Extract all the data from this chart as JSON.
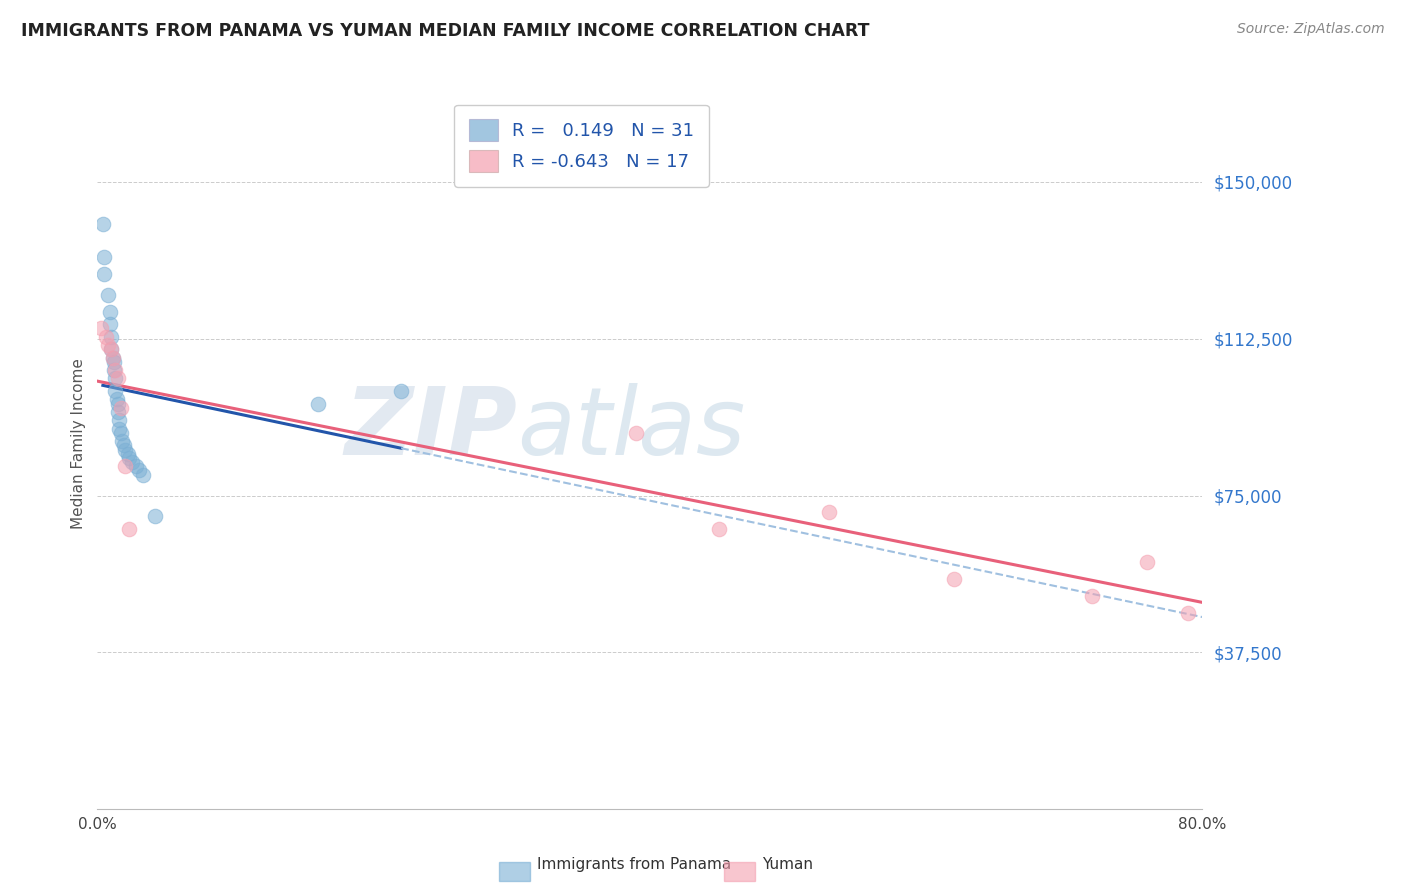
{
  "title": "IMMIGRANTS FROM PANAMA VS YUMAN MEDIAN FAMILY INCOME CORRELATION CHART",
  "source": "Source: ZipAtlas.com",
  "ylabel": "Median Family Income",
  "xlim": [
    0,
    0.8
  ],
  "ylim": [
    0,
    175000
  ],
  "yticks": [
    0,
    37500,
    75000,
    112500,
    150000
  ],
  "ytick_labels": [
    "",
    "$37,500",
    "$75,000",
    "$112,500",
    "$150,000"
  ],
  "xticks": [
    0.0,
    0.1,
    0.2,
    0.3,
    0.4,
    0.5,
    0.6,
    0.7,
    0.8
  ],
  "xtick_labels": [
    "0.0%",
    "",
    "",
    "",
    "",
    "",
    "",
    "",
    "80.0%"
  ],
  "legend_blue_label": "R =   0.149   N = 31",
  "legend_pink_label": "R = -0.643   N = 17",
  "legend_blue_series": "Immigrants from Panama",
  "legend_pink_series": "Yuman",
  "blue_color": "#7bafd4",
  "pink_color": "#f4a0b0",
  "blue_line_color": "#2255aa",
  "blue_dash_color": "#a0c0e0",
  "pink_line_color": "#e8607a",
  "watermark_zip": "ZIP",
  "watermark_atlas": "atlas",
  "blue_x": [
    0.004,
    0.005,
    0.005,
    0.008,
    0.009,
    0.009,
    0.01,
    0.01,
    0.011,
    0.012,
    0.012,
    0.013,
    0.013,
    0.014,
    0.015,
    0.015,
    0.016,
    0.016,
    0.017,
    0.018,
    0.019,
    0.02,
    0.022,
    0.023,
    0.025,
    0.028,
    0.03,
    0.033,
    0.042,
    0.16,
    0.22
  ],
  "blue_y": [
    140000,
    132000,
    128000,
    123000,
    119000,
    116000,
    113000,
    110000,
    108000,
    107000,
    105000,
    103000,
    100000,
    98000,
    97000,
    95000,
    93000,
    91000,
    90000,
    88000,
    87000,
    86000,
    85000,
    84000,
    83000,
    82000,
    81000,
    80000,
    70000,
    97000,
    100000
  ],
  "pink_x": [
    0.003,
    0.006,
    0.008,
    0.01,
    0.011,
    0.013,
    0.015,
    0.017,
    0.02,
    0.023,
    0.39,
    0.45,
    0.53,
    0.62,
    0.72,
    0.76,
    0.79
  ],
  "pink_y": [
    115000,
    113000,
    111000,
    110000,
    108000,
    105000,
    103000,
    96000,
    82000,
    67000,
    90000,
    67000,
    71000,
    55000,
    51000,
    59000,
    47000
  ]
}
